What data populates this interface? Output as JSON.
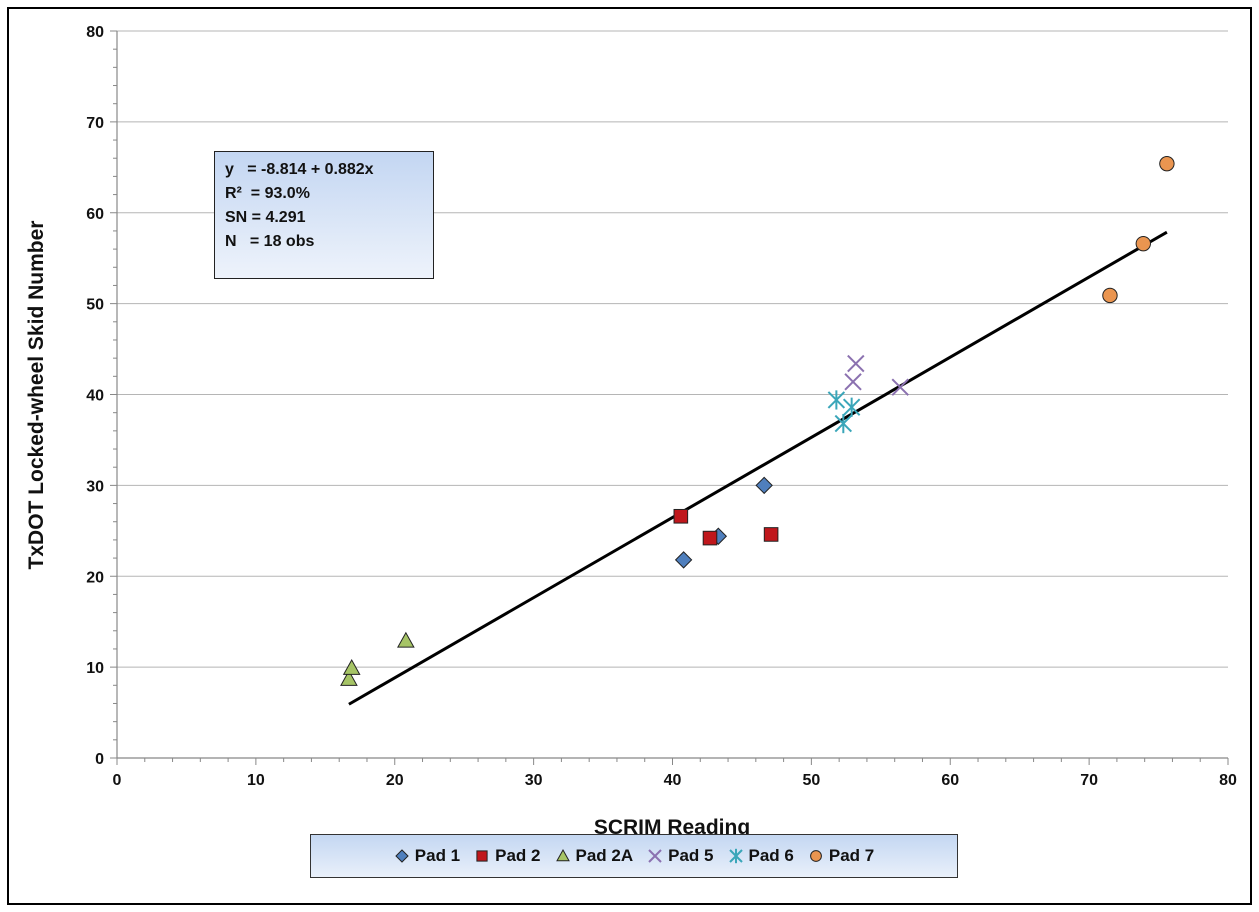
{
  "chart_data": {
    "type": "scatter",
    "xlabel": "SCRIM Reading",
    "ylabel": "TxDOT Locked-wheel Skid Number",
    "xlim": [
      0,
      80
    ],
    "ylim": [
      0,
      80
    ],
    "x_ticks": [
      "0",
      "10",
      "20",
      "30",
      "40",
      "50",
      "60",
      "70",
      "80"
    ],
    "y_ticks": [
      "0",
      "10",
      "20",
      "30",
      "40",
      "50",
      "60",
      "70",
      "80"
    ],
    "grid": "horizontal",
    "legend_position": "bottom",
    "series": [
      {
        "name": "Pad 1",
        "marker": "diamond",
        "color": "#4f7fbd",
        "points": [
          [
            40.8,
            21.8
          ],
          [
            43.3,
            24.4
          ],
          [
            46.6,
            30.0
          ]
        ]
      },
      {
        "name": "Pad 2",
        "marker": "square",
        "color": "#c0171c",
        "points": [
          [
            40.6,
            26.6
          ],
          [
            42.7,
            24.2
          ],
          [
            47.1,
            24.6
          ]
        ]
      },
      {
        "name": "Pad 2A",
        "marker": "triangle",
        "color": "#a6c466",
        "points": [
          [
            16.7,
            8.7
          ],
          [
            16.9,
            9.9
          ],
          [
            20.8,
            12.9
          ]
        ]
      },
      {
        "name": "Pad 5",
        "marker": "x",
        "color": "#8b71b0",
        "points": [
          [
            53.2,
            43.4
          ],
          [
            53.0,
            41.4
          ],
          [
            56.4,
            40.8
          ]
        ]
      },
      {
        "name": "Pad 6",
        "marker": "asterisk",
        "color": "#3aa6b9",
        "points": [
          [
            51.8,
            39.4
          ],
          [
            52.9,
            38.6
          ],
          [
            52.3,
            36.8
          ]
        ]
      },
      {
        "name": "Pad 7",
        "marker": "circle",
        "color": "#ea9550",
        "points": [
          [
            75.6,
            65.4
          ],
          [
            73.9,
            56.6
          ],
          [
            71.5,
            50.9
          ]
        ]
      }
    ],
    "trendline": {
      "intercept": -8.814,
      "slope": 0.882,
      "x_range": [
        16.7,
        75.6
      ],
      "color": "#000000"
    },
    "annotation": {
      "lines": [
        "y   = -8.814 + 0.882x",
        "R²  = 93.0%",
        "SN = 4.291",
        "N   = 18 obs"
      ]
    }
  }
}
